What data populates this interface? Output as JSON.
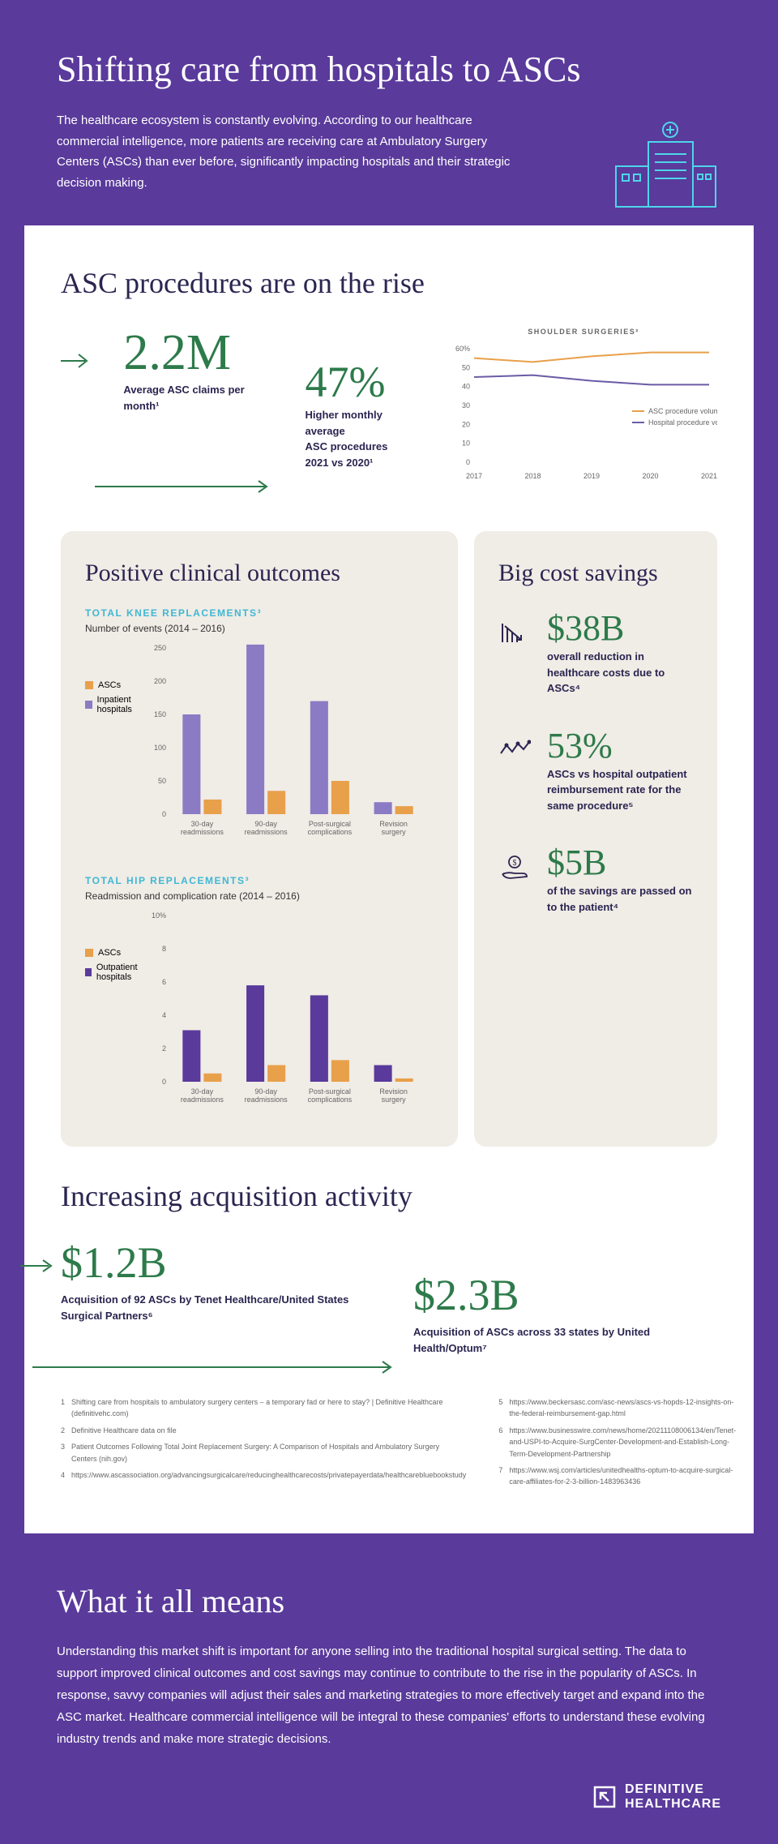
{
  "header": {
    "title": "Shifting care from hospitals to ASCs",
    "text": "The healthcare ecosystem is constantly evolving. According to our healthcare commercial intelligence, more patients are receiving care at Ambulatory Surgery Centers (ASCs) than ever before, significantly impacting hospitals and their strategic decision making.",
    "icon_color": "#4dd6e8"
  },
  "section1": {
    "title": "ASC procedures are on the rise",
    "stat1": {
      "value": "2.2M",
      "label": "Average ASC claims per month¹"
    },
    "stat2": {
      "value": "47%",
      "label_line1": "Higher monthly average",
      "label_line2": "ASC procedures",
      "label_line3": "2021 vs 2020¹"
    },
    "line_chart": {
      "title": "SHOULDER SURGERIES²",
      "title_color": "#3fb8d4",
      "years": [
        "2017",
        "2018",
        "2019",
        "2020",
        "2021"
      ],
      "ylim": [
        0,
        60
      ],
      "ytick_step": 10,
      "series": [
        {
          "name": "ASC procedure volume %",
          "color": "#e8a04a",
          "values": [
            55,
            53,
            56,
            58,
            58
          ]
        },
        {
          "name": "Hospital procedure volume %",
          "color": "#6b5ba6",
          "values": [
            45,
            46,
            43,
            41,
            41
          ]
        }
      ]
    }
  },
  "panel_left": {
    "title": "Positive clinical outcomes",
    "chart1": {
      "heading": "TOTAL KNEE REPLACEMENTS³",
      "sub": "Number of events (2014 – 2016)",
      "categories": [
        "30-day readmissions",
        "90-day readmissions",
        "Post-surgical complications",
        "Revision surgery"
      ],
      "ylim": [
        0,
        250
      ],
      "ytick_step": 50,
      "series": [
        {
          "name": "ASCs",
          "color": "#e8a04a",
          "values": [
            22,
            35,
            50,
            12
          ]
        },
        {
          "name": "Inpatient hospitals",
          "color": "#8b7bc4",
          "values": [
            150,
            255,
            170,
            18
          ]
        }
      ]
    },
    "chart2": {
      "heading": "TOTAL HIP REPLACEMENTS³",
      "sub": "Readmission and complication rate (2014 – 2016)",
      "categories": [
        "30-day readmissions",
        "90-day readmissions",
        "Post-surgical complications",
        "Revision surgery"
      ],
      "ylim": [
        0,
        10
      ],
      "ytick_step": 2,
      "ylabel_suffix": "%",
      "series": [
        {
          "name": "ASCs",
          "color": "#e8a04a",
          "values": [
            0.5,
            1.0,
            1.3,
            0.2
          ]
        },
        {
          "name": "Outpatient hospitals",
          "color": "#5a3a9b",
          "values": [
            3.1,
            5.8,
            5.2,
            1.0
          ]
        }
      ]
    }
  },
  "panel_right": {
    "title": "Big cost savings",
    "items": [
      {
        "stat": "$38B",
        "text": "overall reduction in healthcare costs due to ASCs⁴",
        "icon": "bars-down"
      },
      {
        "stat": "53%",
        "text": "ASCs vs hospital outpatient reimbursement rate for the same procedure⁵",
        "icon": "zigzag"
      },
      {
        "stat": "$5B",
        "text": "of the savings are passed on to the patient⁴",
        "icon": "hand-coin"
      }
    ]
  },
  "acquisition": {
    "title": "Increasing acquisition activity",
    "items": [
      {
        "stat": "$1.2B",
        "text": "Acquisition of 92 ASCs by Tenet Healthcare/United States Surgical Partners⁶"
      },
      {
        "stat": "$2.3B",
        "text": "Acquisition of ASCs across 33 states by United Health/Optum⁷"
      }
    ]
  },
  "footnotes": {
    "left": [
      {
        "n": "1",
        "t": "Shifting care from hospitals to ambulatory surgery centers – a temporary fad or here to stay? | Definitive Healthcare (definitivehc.com)"
      },
      {
        "n": "2",
        "t": "Definitive Healthcare data on file"
      },
      {
        "n": "3",
        "t": "Patient Outcomes Following Total Joint Replacement Surgery: A Comparison of Hospitals and Ambulatory Surgery Centers (nih.gov)"
      },
      {
        "n": "4",
        "t": "https://www.ascassociation.org/advancingsurgicalcare/reducinghealthcarecosts/privatepayerdata/healthcarebluebookstudy"
      }
    ],
    "right": [
      {
        "n": "5",
        "t": "https://www.beckersasc.com/asc-news/ascs-vs-hopds-12-insights-on-the-federal-reimbursement-gap.html"
      },
      {
        "n": "6",
        "t": "https://www.businesswire.com/news/home/20211108006134/en/Tenet-and-USPI-to-Acquire-SurgCenter-Development-and-Establish-Long-Term-Development-Partnership"
      },
      {
        "n": "7",
        "t": "https://www.wsj.com/articles/unitedhealths-optum-to-acquire-surgical-care-affiliates-for-2-3-billion-1483963436"
      }
    ]
  },
  "footer": {
    "title": "What it all means",
    "text": "Understanding this market shift is important for anyone selling into the traditional hospital surgical setting. The data to support improved clinical outcomes and cost savings may continue to contribute to the rise in the popularity of ASCs. In response, savvy companies will adjust their sales and marketing strategies to more effectively target and expand into the ASC market. Healthcare commercial intelligence will be integral to these companies' efforts to understand these evolving industry trends and make more strategic decisions.",
    "logo_line1": "DEFINITIVE",
    "logo_line2": "HEALTHCARE"
  },
  "colors": {
    "purple_bg": "#5a3a9b",
    "dark_navy": "#2a2550",
    "green": "#2d7a4a",
    "beige": "#f0ece6",
    "teal": "#3fb8d4"
  }
}
